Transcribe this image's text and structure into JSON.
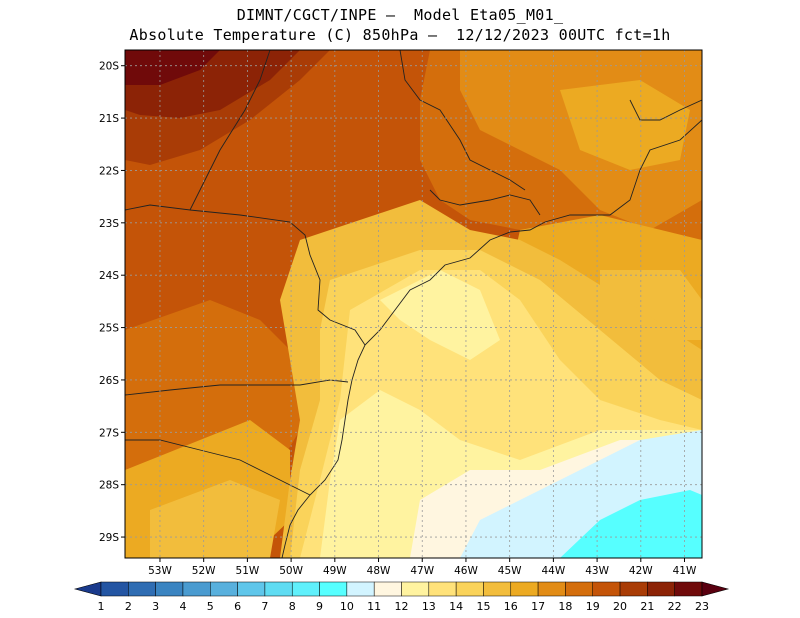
{
  "header": {
    "line1": "DIMNT/CGCT/INPE –  Model Eta05_M01_",
    "line2": "Absolute Temperature (C) 850hPa –  12/12/2023 00UTC fct=1h"
  },
  "map": {
    "variable": "Absolute Temperature (C) 850hPa",
    "lat_labels": [
      "20S",
      "21S",
      "22S",
      "23S",
      "24S",
      "25S",
      "26S",
      "27S",
      "28S",
      "29S"
    ],
    "lon_labels": [
      "53W",
      "52W",
      "51W",
      "50W",
      "49W",
      "48W",
      "47W",
      "46W",
      "45W",
      "44W",
      "43W",
      "42W",
      "41W"
    ],
    "lat_range": [
      -29.4,
      -19.7
    ],
    "lon_range": [
      -53.8,
      -40.6
    ]
  },
  "colorbar": {
    "labels": [
      "1",
      "2",
      "3",
      "4",
      "5",
      "6",
      "7",
      "8",
      "9",
      "10",
      "11",
      "12",
      "13",
      "14",
      "15",
      "16",
      "17",
      "18",
      "19",
      "20",
      "21",
      "22",
      "23"
    ],
    "colors": [
      "#1a3a8c",
      "#2355a3",
      "#2f6db3",
      "#3a84c1",
      "#4a9bd0",
      "#58b0dd",
      "#5fc6ea",
      "#5fdcf2",
      "#5ff0fb",
      "#56ffff",
      "#d2f4ff",
      "#fff6e0",
      "#fff3a0",
      "#ffe27a",
      "#fad35a",
      "#f2bd3c",
      "#ecaa22",
      "#e28c16",
      "#d46e0c",
      "#c45408",
      "#a93c06",
      "#8c2306",
      "#700a0a",
      "#5a0010"
    ]
  },
  "legend_levels": [
    "10",
    "11",
    "12",
    "13",
    "14",
    "15",
    "16",
    "17",
    "18",
    "19",
    "20",
    "21"
  ]
}
